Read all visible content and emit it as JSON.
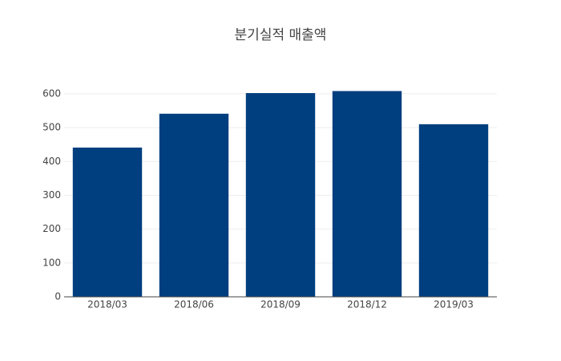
{
  "chart_data": {
    "type": "bar",
    "title": "분기실적 매출액",
    "categories": [
      "2018/03",
      "2018/06",
      "2018/09",
      "2018/12",
      "2019/03"
    ],
    "values": [
      441,
      541,
      602,
      608,
      510
    ],
    "color": "#003f7f",
    "ylim": [
      0,
      640
    ],
    "yticks": [
      0,
      100,
      200,
      300,
      400,
      500,
      600
    ],
    "grid": true
  }
}
